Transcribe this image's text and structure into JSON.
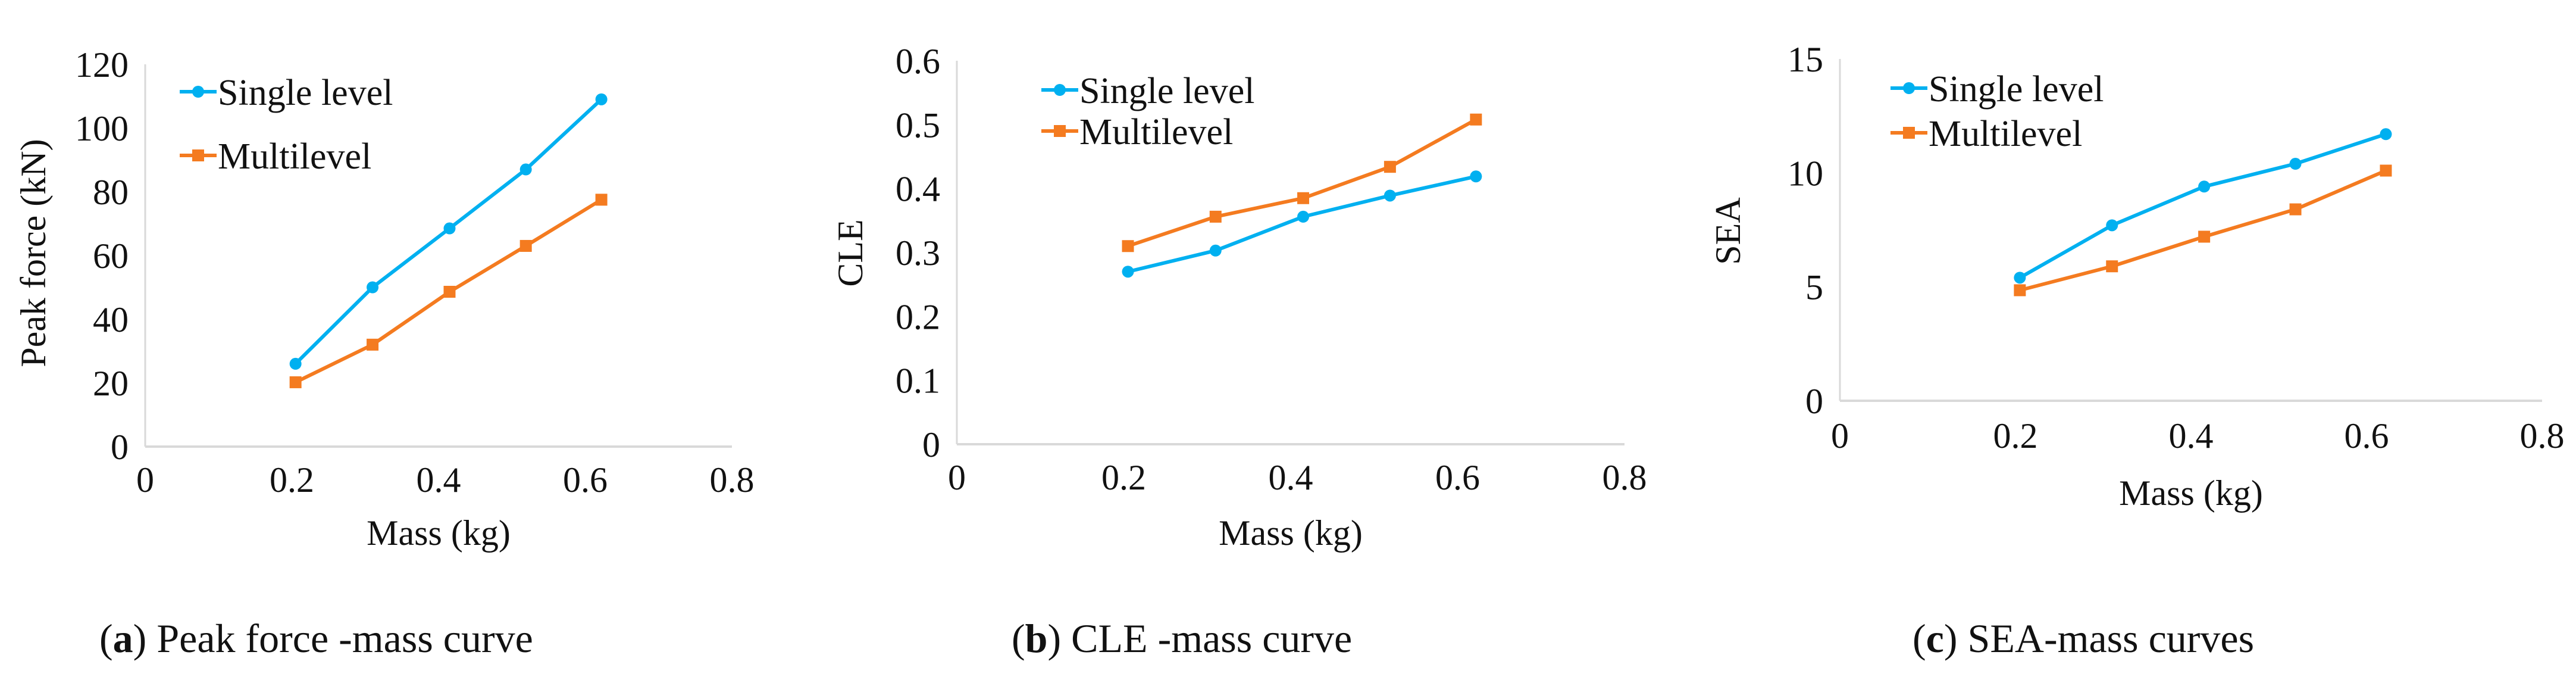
{
  "colors": {
    "single": "#00B0F0",
    "multi": "#F47B20",
    "axis": "#D9D9D9"
  },
  "chart_data": [
    {
      "type": "line",
      "caption_letter": "a",
      "caption_text": " Peak force -mass curve",
      "xlabel": "Mass (kg)",
      "ylabel": "Peak force (kN)",
      "xlim": [
        0,
        0.8
      ],
      "ylim": [
        0,
        120
      ],
      "xticks": [
        "0",
        "0.2",
        "0.4",
        "0.6",
        "0.8"
      ],
      "yticks": [
        "0",
        "20",
        "40",
        "60",
        "80",
        "100",
        "120"
      ],
      "grid": false,
      "legend": "top-left",
      "x": [
        0.205,
        0.31,
        0.415,
        0.519,
        0.622
      ],
      "series": [
        {
          "name": "Single level",
          "marker": "circle",
          "values": [
            26,
            50,
            68.5,
            87,
            109
          ]
        },
        {
          "name": "Multilevel",
          "marker": "square",
          "values": [
            20.2,
            32,
            48.6,
            63,
            77.5
          ]
        }
      ]
    },
    {
      "type": "line",
      "caption_letter": "b",
      "caption_text": " CLE -mass curve",
      "xlabel": "Mass (kg)",
      "ylabel": "CLE",
      "xlim": [
        0,
        0.8
      ],
      "ylim": [
        0,
        0.6
      ],
      "xticks": [
        "0",
        "0.2",
        "0.4",
        "0.6",
        "0.8"
      ],
      "yticks": [
        "0",
        "0.1",
        "0.2",
        "0.3",
        "0.4",
        "0.5",
        "0.6"
      ],
      "grid": false,
      "legend": "top-left",
      "x": [
        0.205,
        0.31,
        0.415,
        0.519,
        0.622
      ],
      "series": [
        {
          "name": "Single level",
          "marker": "circle",
          "values": [
            0.27,
            0.303,
            0.356,
            0.389,
            0.419
          ]
        },
        {
          "name": "Multilevel",
          "marker": "square",
          "values": [
            0.31,
            0.356,
            0.385,
            0.434,
            0.508
          ]
        }
      ]
    },
    {
      "type": "line",
      "caption_letter": "c",
      "caption_text": " SEA-mass curves",
      "xlabel": "Mass (kg)",
      "ylabel": "SEA",
      "xlim": [
        0,
        0.8
      ],
      "ylim": [
        0,
        15
      ],
      "xticks": [
        "0",
        "0.2",
        "0.4",
        "0.6",
        "0.8"
      ],
      "yticks": [
        "0",
        "5",
        "10",
        "15"
      ],
      "grid": false,
      "legend": "top-left",
      "x": [
        0.205,
        0.31,
        0.415,
        0.519,
        0.622
      ],
      "series": [
        {
          "name": "Single level",
          "marker": "circle",
          "values": [
            5.4,
            7.7,
            9.4,
            10.4,
            11.7
          ]
        },
        {
          "name": "Multilevel",
          "marker": "square",
          "values": [
            4.85,
            5.9,
            7.2,
            8.4,
            10.1
          ]
        }
      ]
    }
  ]
}
